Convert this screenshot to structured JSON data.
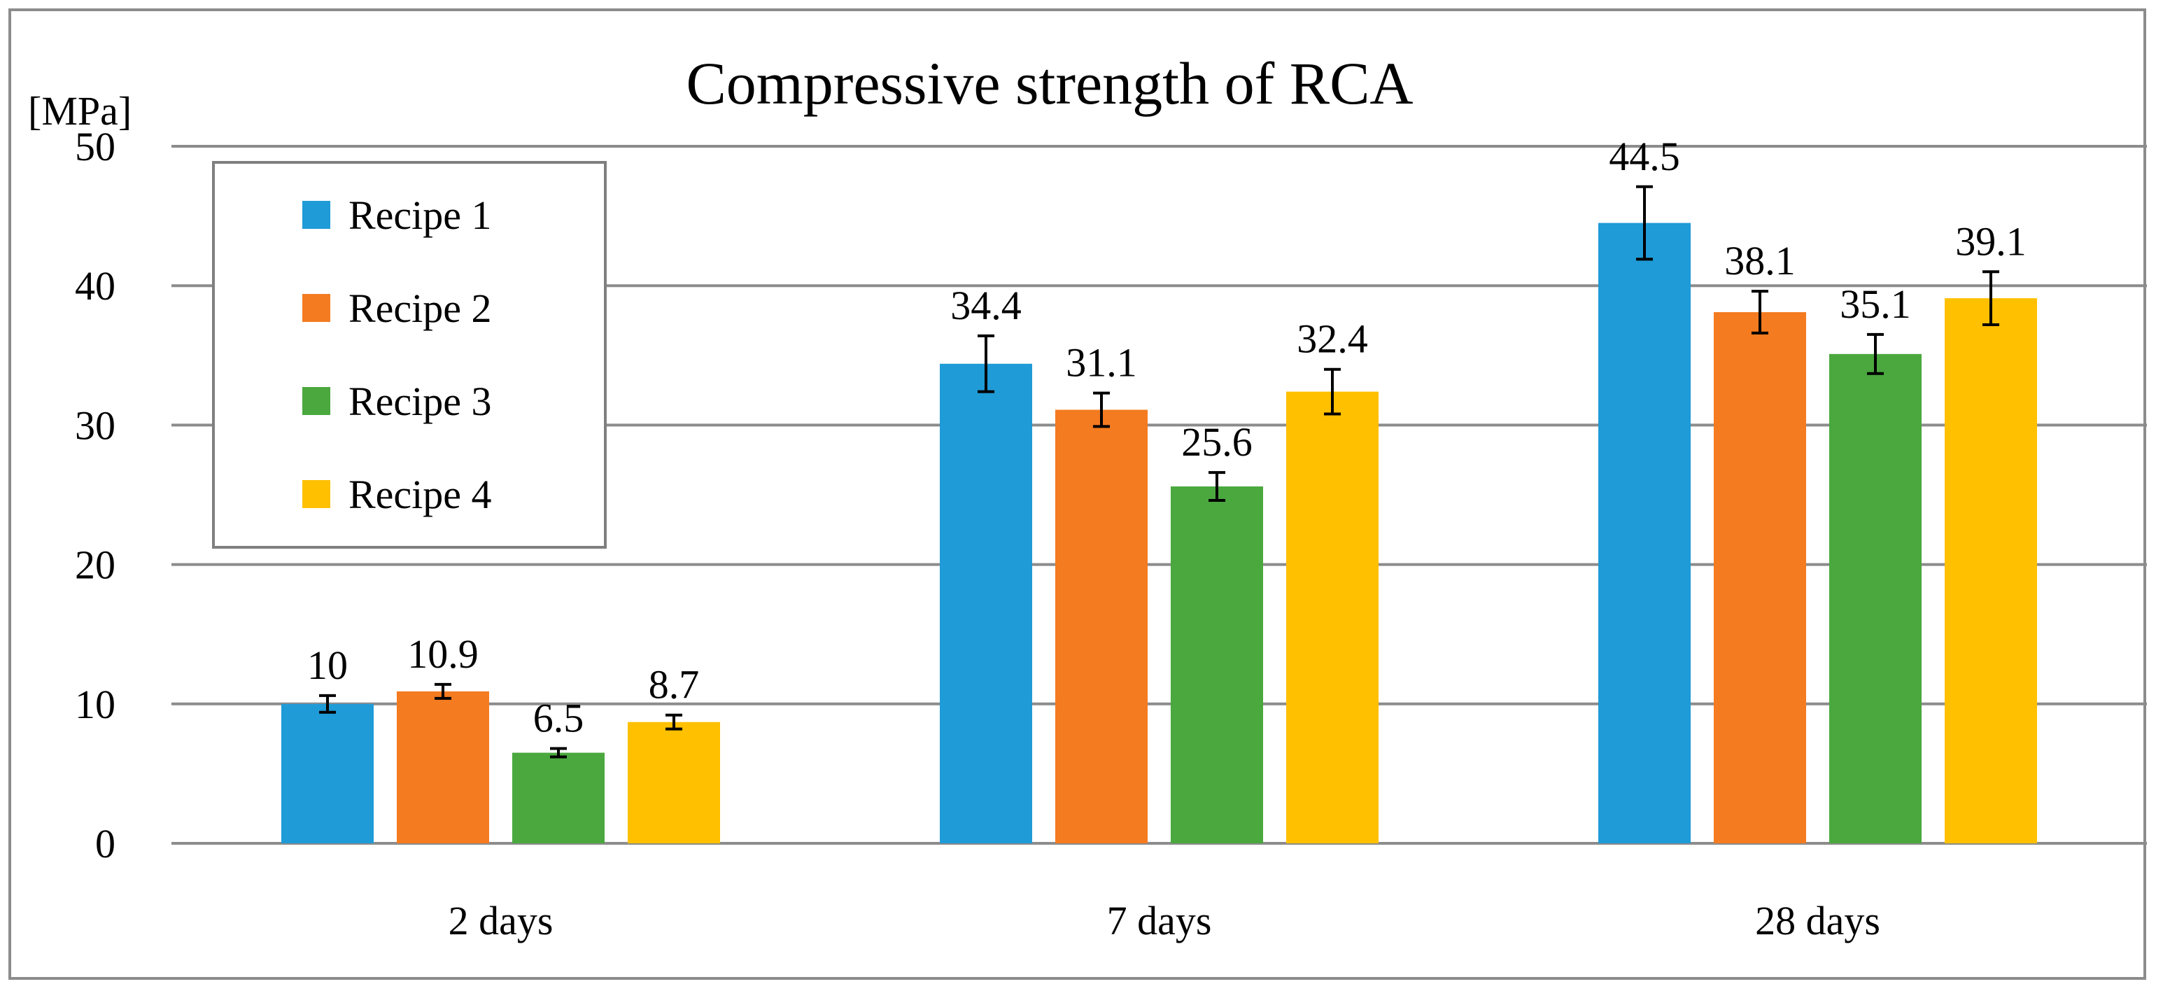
{
  "chart_data": {
    "type": "bar",
    "title": "Compressive strength of RCA",
    "ylabel": "[MPa]",
    "xlabel": "",
    "ylim": [
      0,
      50
    ],
    "yticks": [
      0,
      10,
      20,
      30,
      40,
      50
    ],
    "grid": true,
    "legend_position": "top-left",
    "categories": [
      "2 days",
      "7 days",
      "28 days"
    ],
    "series": [
      {
        "name": "Recipe 1",
        "color": "#1f9bd7",
        "values": [
          10,
          34.4,
          44.5
        ],
        "labels": [
          "10",
          "34.4",
          "44.5"
        ],
        "errors": [
          0.6,
          2.0,
          2.6
        ]
      },
      {
        "name": "Recipe 2",
        "color": "#f47b20",
        "values": [
          10.9,
          31.1,
          38.1
        ],
        "labels": [
          "10.9",
          "31.1",
          "38.1"
        ],
        "errors": [
          0.5,
          1.2,
          1.5
        ]
      },
      {
        "name": "Recipe 3",
        "color": "#4aa83e",
        "values": [
          6.5,
          25.6,
          35.1
        ],
        "labels": [
          "6.5",
          "25.6",
          "35.1"
        ],
        "errors": [
          0.3,
          1.0,
          1.4
        ]
      },
      {
        "name": "Recipe 4",
        "color": "#ffc000",
        "values": [
          8.7,
          32.4,
          39.1
        ],
        "labels": [
          "8.7",
          "32.4",
          "39.1"
        ],
        "errors": [
          0.5,
          1.6,
          1.9
        ]
      }
    ]
  }
}
